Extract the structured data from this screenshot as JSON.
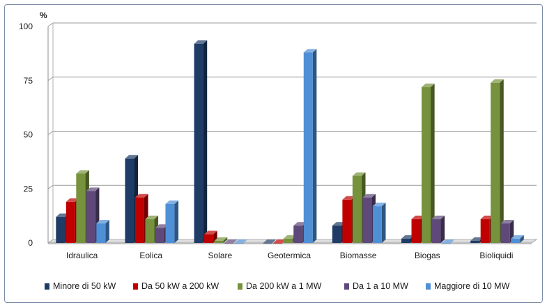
{
  "chart_data": {
    "type": "bar",
    "ylabel": "%",
    "ylim": [
      0,
      100
    ],
    "yticks": [
      0,
      25,
      50,
      75,
      100
    ],
    "grid": true,
    "legend_position": "bottom",
    "categories": [
      "Idraulica",
      "Eolica",
      "Solare",
      "Geotermica",
      "Biomasse",
      "Biogas",
      "Bioliquidi"
    ],
    "series": [
      {
        "name": "Minore di 50 kW",
        "color": "#1f3c66",
        "values": [
          12,
          39,
          92,
          0,
          8,
          2,
          1
        ]
      },
      {
        "name": "Da 50 kW a 200 kW",
        "color": "#c00000",
        "values": [
          19,
          21,
          4,
          0,
          20,
          11,
          11
        ]
      },
      {
        "name": "Da 200 kW a 1 MW",
        "color": "#76923c",
        "values": [
          32,
          11,
          1,
          2,
          31,
          72,
          74
        ]
      },
      {
        "name": "Da 1 a 10 MW",
        "color": "#5f497a",
        "values": [
          24,
          7,
          0,
          8,
          21,
          11,
          9
        ]
      },
      {
        "name": "Maggiore di 10 MW",
        "color": "#4f8fd6",
        "values": [
          9,
          18,
          0,
          88,
          17,
          0,
          2
        ]
      }
    ]
  }
}
